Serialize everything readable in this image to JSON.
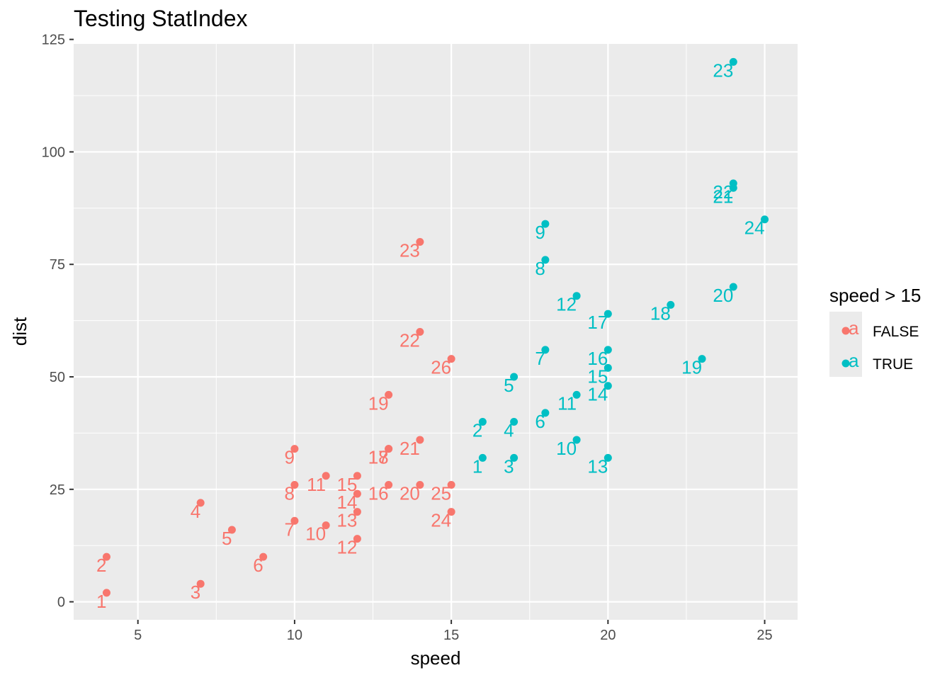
{
  "chart_data": {
    "type": "scatter",
    "title": "Testing StatIndex",
    "xlabel": "speed",
    "ylabel": "dist",
    "xlim": [
      2.95,
      26.05
    ],
    "ylim": [
      -4,
      124
    ],
    "x_ticks": [
      5,
      10,
      15,
      20,
      25
    ],
    "y_ticks": [
      0,
      25,
      50,
      75,
      100,
      125
    ],
    "grid": true,
    "legend": {
      "title": "speed > 15",
      "placement": "right",
      "key_glyph": "a",
      "entries": [
        "FALSE",
        "TRUE"
      ]
    },
    "series": [
      {
        "name": "FALSE",
        "color": "#F8766D",
        "points": [
          {
            "x": 4,
            "y": 2,
            "label": "1"
          },
          {
            "x": 4,
            "y": 10,
            "label": "2"
          },
          {
            "x": 7,
            "y": 4,
            "label": "3"
          },
          {
            "x": 7,
            "y": 22,
            "label": "4"
          },
          {
            "x": 8,
            "y": 16,
            "label": "5"
          },
          {
            "x": 9,
            "y": 10,
            "label": "6"
          },
          {
            "x": 10,
            "y": 18,
            "label": "7"
          },
          {
            "x": 10,
            "y": 26,
            "label": "8"
          },
          {
            "x": 10,
            "y": 34,
            "label": "9"
          },
          {
            "x": 11,
            "y": 17,
            "label": "10"
          },
          {
            "x": 11,
            "y": 28,
            "label": "11"
          },
          {
            "x": 12,
            "y": 14,
            "label": "12"
          },
          {
            "x": 12,
            "y": 20,
            "label": "13"
          },
          {
            "x": 12,
            "y": 24,
            "label": "14"
          },
          {
            "x": 12,
            "y": 28,
            "label": "15"
          },
          {
            "x": 13,
            "y": 26,
            "label": "16"
          },
          {
            "x": 13,
            "y": 34,
            "label": "17"
          },
          {
            "x": 13,
            "y": 34,
            "label": "18"
          },
          {
            "x": 13,
            "y": 46,
            "label": "19"
          },
          {
            "x": 14,
            "y": 26,
            "label": "20"
          },
          {
            "x": 14,
            "y": 36,
            "label": "21"
          },
          {
            "x": 14,
            "y": 60,
            "label": "22"
          },
          {
            "x": 14,
            "y": 80,
            "label": "23"
          },
          {
            "x": 15,
            "y": 20,
            "label": "24"
          },
          {
            "x": 15,
            "y": 26,
            "label": "25"
          },
          {
            "x": 15,
            "y": 54,
            "label": "26"
          }
        ]
      },
      {
        "name": "TRUE",
        "color": "#00BFC4",
        "points": [
          {
            "x": 16,
            "y": 32,
            "label": "1"
          },
          {
            "x": 16,
            "y": 40,
            "label": "2"
          },
          {
            "x": 17,
            "y": 32,
            "label": "3"
          },
          {
            "x": 17,
            "y": 40,
            "label": "4"
          },
          {
            "x": 17,
            "y": 50,
            "label": "5"
          },
          {
            "x": 18,
            "y": 42,
            "label": "6"
          },
          {
            "x": 18,
            "y": 56,
            "label": "7"
          },
          {
            "x": 18,
            "y": 76,
            "label": "8"
          },
          {
            "x": 18,
            "y": 84,
            "label": "9"
          },
          {
            "x": 19,
            "y": 36,
            "label": "10"
          },
          {
            "x": 19,
            "y": 46,
            "label": "11"
          },
          {
            "x": 19,
            "y": 68,
            "label": "12"
          },
          {
            "x": 20,
            "y": 32,
            "label": "13"
          },
          {
            "x": 20,
            "y": 48,
            "label": "14"
          },
          {
            "x": 20,
            "y": 52,
            "label": "15"
          },
          {
            "x": 20,
            "y": 56,
            "label": "16"
          },
          {
            "x": 20,
            "y": 64,
            "label": "17"
          },
          {
            "x": 22,
            "y": 66,
            "label": "18"
          },
          {
            "x": 23,
            "y": 54,
            "label": "19"
          },
          {
            "x": 24,
            "y": 70,
            "label": "20"
          },
          {
            "x": 24,
            "y": 92,
            "label": "21"
          },
          {
            "x": 24,
            "y": 93,
            "label": "22"
          },
          {
            "x": 24,
            "y": 120,
            "label": "23"
          },
          {
            "x": 25,
            "y": 85,
            "label": "24"
          }
        ]
      }
    ]
  }
}
